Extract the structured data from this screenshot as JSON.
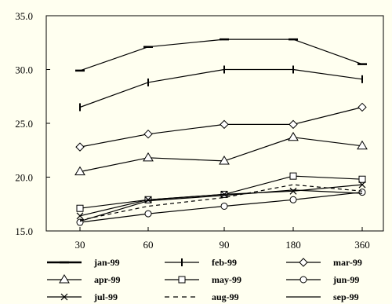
{
  "chart_data": {
    "type": "line",
    "title": "",
    "xlabel": "",
    "ylabel": "",
    "categories": [
      "30",
      "60",
      "90",
      "180",
      "360"
    ],
    "yticks": [
      "15.0",
      "20.0",
      "25.0",
      "30.0",
      "35.0"
    ],
    "ylim": [
      15,
      35
    ],
    "grid": false,
    "legend_position": "bottom",
    "series": [
      {
        "name": "jan-99",
        "marker": "dash",
        "dashed": false,
        "values": [
          29.9,
          32.1,
          32.8,
          32.8,
          30.5
        ]
      },
      {
        "name": "feb-99",
        "marker": "vbar",
        "dashed": false,
        "values": [
          26.5,
          28.8,
          30.0,
          30.0,
          29.1
        ]
      },
      {
        "name": "mar-99",
        "marker": "diamond",
        "dashed": false,
        "values": [
          22.8,
          24.0,
          24.9,
          24.9,
          26.5
        ]
      },
      {
        "name": "apr-99",
        "marker": "triangle",
        "dashed": false,
        "values": [
          20.5,
          21.8,
          21.5,
          23.7,
          22.9
        ]
      },
      {
        "name": "may-99",
        "marker": "square",
        "dashed": false,
        "values": [
          17.1,
          17.9,
          18.4,
          20.1,
          19.8
        ]
      },
      {
        "name": "jun-99",
        "marker": "circle",
        "dashed": false,
        "values": [
          15.8,
          16.6,
          17.3,
          17.9,
          18.6
        ]
      },
      {
        "name": "jul-99",
        "marker": "x",
        "dashed": false,
        "values": [
          16.4,
          17.9,
          18.4,
          18.7,
          19.3
        ]
      },
      {
        "name": "aug-99",
        "marker": "none",
        "dashed": true,
        "values": [
          16.0,
          17.3,
          18.1,
          19.3,
          18.7
        ]
      },
      {
        "name": "sep-99",
        "marker": "none",
        "dashed": false,
        "values": [
          15.9,
          17.8,
          18.3,
          18.8,
          18.5
        ]
      }
    ]
  }
}
